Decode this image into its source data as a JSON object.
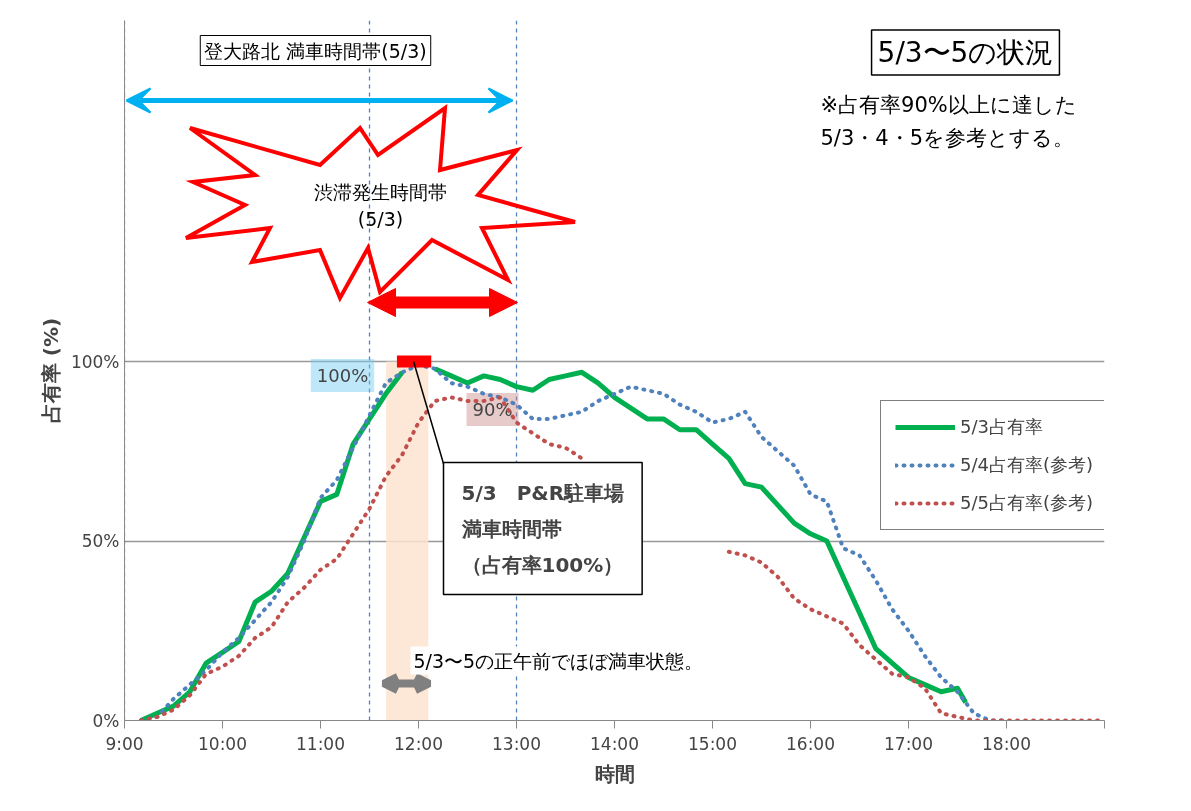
{
  "chart_data": {
    "type": "line",
    "title": "5/3〜5の状況",
    "subtitle": "※占有率90%以上に達した\n5/3・4・5を参考とする。",
    "xlabel": "時間",
    "ylabel": "占有率 (%)",
    "annotations": [
      "登大路北 満車時間帯(5/3)",
      "渋滞発生時間帯\n(5/3)",
      "100%",
      "90%",
      {
        "text": "5/3　P&R駐車場満車時間帯（占有率100%）",
        "x": 11.95,
        "y": 100
      },
      "5/3〜5の正午前でほぼ満車状態。"
    ],
    "x": [
      9.1667,
      9.3333,
      9.5,
      9.6667,
      9.8333,
      10,
      10.1667,
      10.3333,
      10.5,
      10.6667,
      10.8333,
      11,
      11.1667,
      11.3333,
      11.5,
      11.6667,
      11.8333,
      12,
      12.1667,
      12.3333,
      12.5,
      12.6667,
      12.8333,
      13,
      13.1667,
      13.3333,
      13.5,
      13.6667,
      13.8333,
      14,
      14.1667,
      14.3333,
      14.5,
      14.6667,
      14.8333,
      15,
      15.1667,
      15.3333,
      15.5,
      15.6667,
      15.8333,
      16,
      16.1667,
      16.3333,
      16.5,
      16.6667,
      16.8333,
      17,
      17.1667,
      17.3333,
      17.5,
      17.6667,
      17.8333,
      18,
      18.1667,
      18.3333,
      18.5,
      18.6667,
      18.8333,
      19
    ],
    "series": [
      {
        "name": "5/3占有率",
        "color": "#00b050",
        "line_style": "solid",
        "x": [
          9.1667,
          9.3333,
          9.5,
          9.6667,
          9.8333,
          10,
          10.1667,
          10.3333,
          10.5,
          10.6667,
          10.8333,
          11,
          11.1667,
          11.3333,
          11.5,
          11.6667,
          11.8333,
          12,
          12.1667,
          12.3333,
          12.5,
          12.6667,
          12.8333,
          13,
          13.1667,
          13.3333,
          13.5,
          13.6667,
          13.8333,
          14,
          14.1667,
          14.3333,
          14.5,
          14.6667,
          14.8333,
          15,
          15.1667,
          15.3333,
          15.5,
          15.6667,
          15.8333,
          16,
          16.1667,
          16.3333,
          16.5,
          16.6667,
          16.8333,
          17,
          17.1667,
          17.3333,
          17.5,
          17.5833
        ],
        "values": [
          0,
          2,
          4,
          8,
          16,
          19,
          22,
          33,
          36,
          41,
          51,
          61,
          63,
          77,
          84,
          91,
          97,
          null,
          98,
          96,
          94,
          96,
          95,
          93,
          92,
          95,
          96,
          97,
          94,
          90,
          87,
          84,
          84,
          81,
          81,
          77,
          73,
          66,
          65,
          60,
          55,
          52,
          50,
          40,
          30,
          20,
          16,
          12,
          10,
          8,
          9,
          5
        ]
      },
      {
        "name": "5/4占有率(参考)",
        "color": "#4f81bd",
        "line_style": "dotted",
        "values": [
          0,
          1,
          6,
          10,
          14,
          19,
          23,
          28,
          33,
          40,
          50,
          62,
          67,
          76,
          85,
          94,
          97,
          99,
          98,
          94,
          93,
          91,
          90,
          88,
          84,
          84,
          85,
          86,
          89,
          91,
          93,
          92,
          91,
          88,
          86,
          83,
          84,
          86,
          79,
          75,
          71,
          63,
          61,
          48,
          46,
          39,
          31,
          25,
          18,
          12,
          8,
          2,
          0,
          0,
          null,
          null,
          null,
          null,
          null,
          null
        ]
      },
      {
        "name": "5/5占有率(参考)",
        "color": "#c0504d",
        "line_style": "dotted",
        "values": [
          0,
          1,
          3,
          7,
          13,
          15,
          18,
          23,
          26,
          33,
          37,
          42,
          45,
          52,
          59,
          68,
          74,
          83,
          89,
          90,
          89,
          89,
          90,
          83,
          80,
          77,
          76,
          73,
          null,
          null,
          null,
          null,
          null,
          null,
          null,
          null,
          47,
          46,
          44,
          40,
          34,
          31,
          29,
          27,
          21,
          17,
          13,
          12,
          9,
          2,
          1,
          0,
          0,
          0,
          0,
          0,
          0,
          0,
          0,
          0
        ]
      },
      {
        "color": "#ff0000",
        "line_style": "solid",
        "x": [
          11.78,
          12.13
        ],
        "values": [
          100,
          100
        ]
      }
    ],
    "xlim": [
      9,
      19
    ],
    "ylim": [
      0,
      195
    ],
    "xticks": [
      {
        "value": 9,
        "label": "9:00"
      },
      {
        "value": 10,
        "label": "10:00"
      },
      {
        "value": 11,
        "label": "11:00"
      },
      {
        "value": 12,
        "label": "12:00"
      },
      {
        "value": 13,
        "label": "13:00"
      },
      {
        "value": 14,
        "label": "14:00"
      },
      {
        "value": 15,
        "label": "15:00"
      },
      {
        "value": 16,
        "label": "16:00"
      },
      {
        "value": 17,
        "label": "17:00"
      },
      {
        "value": 18,
        "label": "18:00"
      },
      {
        "value": 19,
        "label": null
      }
    ],
    "yticks": [
      {
        "value": 0,
        "label": "0%"
      },
      {
        "value": 50,
        "label": "50%"
      },
      {
        "value": 100,
        "label": "100%"
      }
    ],
    "ref_lines": [
      {
        "axis": "x",
        "value": 9.0,
        "color": "#4f81bd",
        "line_style": "dashed"
      },
      {
        "axis": "x",
        "value": 11.5,
        "color": "#4f81bd",
        "line_style": "dashed"
      },
      {
        "axis": "x",
        "value": 13.0,
        "color": "#4f81bd",
        "line_style": "dashed"
      }
    ],
    "bands": [
      {
        "axis": "x",
        "from": 11.67,
        "to": 12.1,
        "color": "#fde4d0"
      }
    ],
    "grid": "y",
    "legend": "right"
  }
}
